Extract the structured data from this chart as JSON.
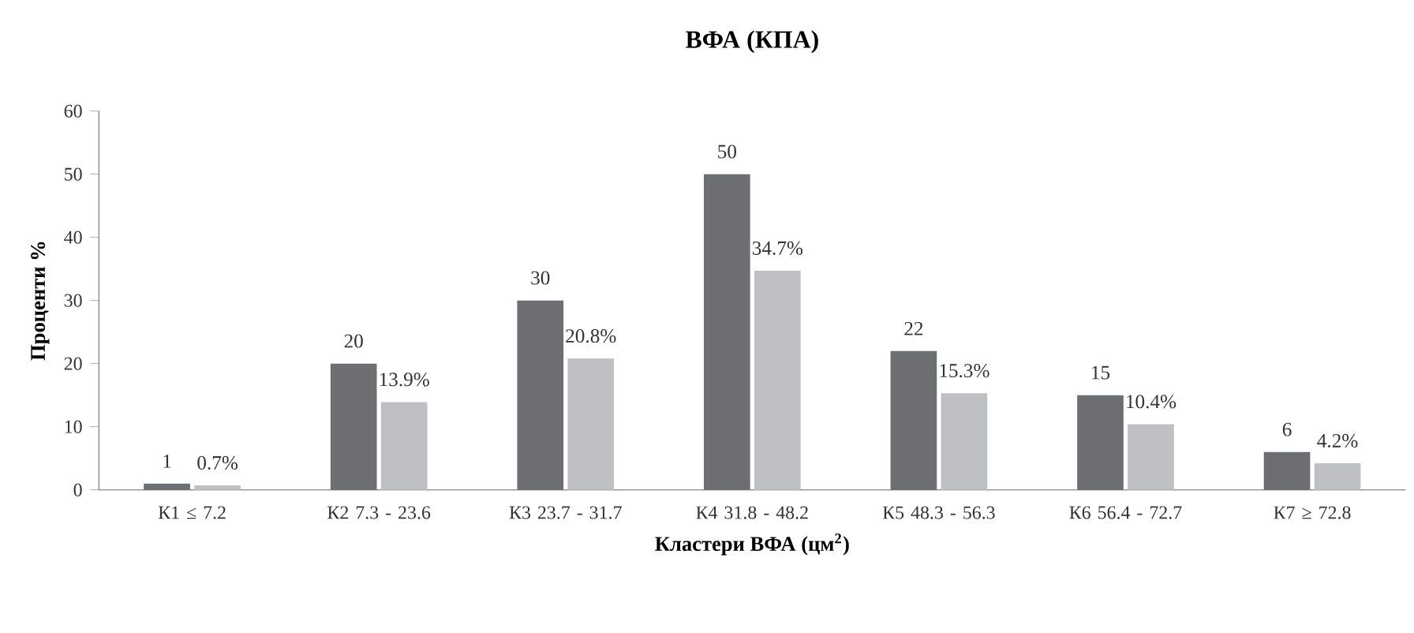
{
  "chart_data": {
    "type": "bar",
    "title": "ВФА (КПА)",
    "xlabel": "Кластери ВФА (цм$^{2}$)",
    "ylabel": "Проценти %",
    "categories": [
      "К1 ≤ 7.2",
      "К2 7.3 - 23.6",
      "К3 23.7 - 31.7",
      "К4 31.8 - 48.2",
      "К5 48.3 - 56.3",
      "К6 56.4 - 72.7",
      "К7 ≥ 72.8"
    ],
    "series": [
      {
        "color": "#6d6e72",
        "values": [
          1,
          20,
          30,
          50,
          22,
          15,
          6
        ],
        "value_labels": [
          "1",
          "20",
          "30",
          "50",
          "22",
          "15",
          "6"
        ]
      },
      {
        "color": "#bfc0c4",
        "values": [
          0.7,
          13.9,
          20.8,
          34.7,
          15.3,
          10.4,
          4.2
        ],
        "value_labels": [
          "0.7%",
          "13.9%",
          "20.8%",
          "34.7%",
          "15.3%",
          "10.4%",
          "4.2%"
        ]
      }
    ],
    "ylim": [
      0,
      60
    ],
    "yticks": [
      0,
      10,
      20,
      30,
      40,
      50,
      60
    ]
  }
}
